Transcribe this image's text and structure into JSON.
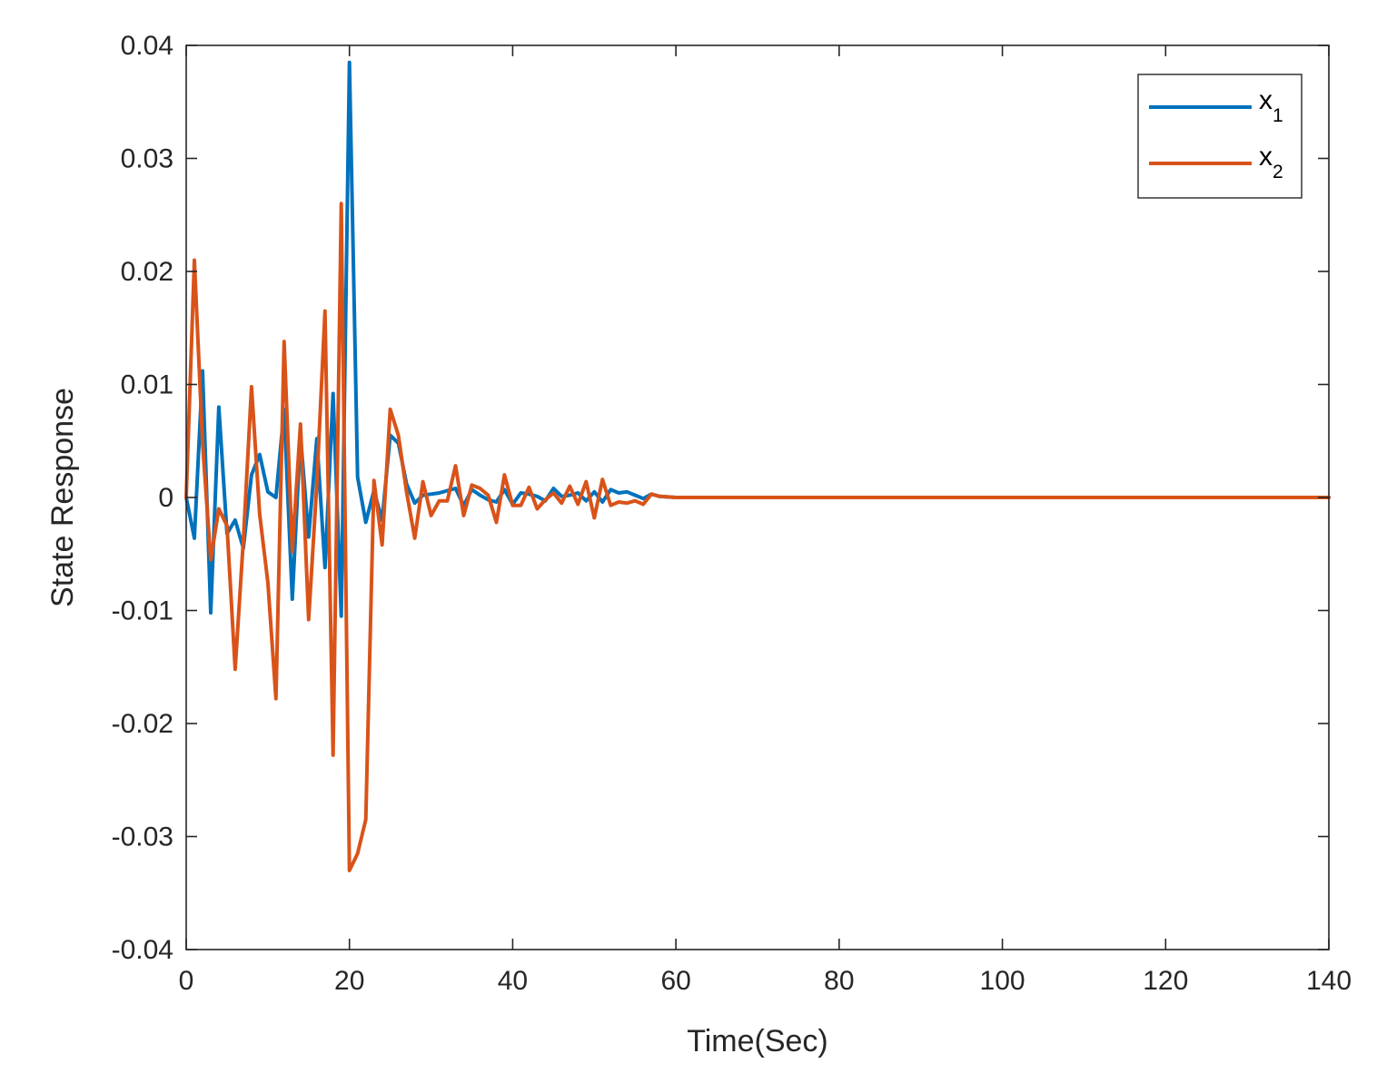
{
  "chart_data": {
    "type": "line",
    "title": "",
    "xlabel": "Time(Sec)",
    "ylabel": "State Response",
    "xlim": [
      0,
      140
    ],
    "ylim": [
      -0.04,
      0.04
    ],
    "xticks": [
      0,
      20,
      40,
      60,
      80,
      100,
      120,
      140
    ],
    "xtick_labels": [
      "0",
      "20",
      "40",
      "60",
      "80",
      "100",
      "120",
      "140"
    ],
    "yticks": [
      -0.04,
      -0.03,
      -0.02,
      -0.01,
      0,
      0.01,
      0.02,
      0.03,
      0.04
    ],
    "ytick_labels": [
      "-0.04",
      "-0.03",
      "-0.02",
      "-0.01",
      "0",
      "0.01",
      "0.02",
      "0.03",
      "0.04"
    ],
    "grid": false,
    "legend_position": "top-right",
    "series": [
      {
        "name": "x",
        "subscript": "1",
        "color": "#0072BD",
        "x": [
          0,
          1,
          2,
          3,
          4,
          5,
          6,
          7,
          8,
          9,
          10,
          11,
          12,
          13,
          14,
          15,
          16,
          17,
          18,
          19,
          20,
          21,
          22,
          23,
          24,
          25,
          26,
          27,
          28,
          29,
          30,
          31,
          32,
          33,
          34,
          35,
          36,
          37,
          38,
          39,
          40,
          41,
          42,
          43,
          44,
          45,
          46,
          47,
          48,
          49,
          50,
          51,
          52,
          53,
          54,
          55,
          56,
          57,
          58,
          60,
          65,
          70,
          75,
          80,
          85,
          90,
          100,
          110,
          120,
          130,
          140
        ],
        "y": [
          0,
          -0.0036,
          0.0112,
          -0.0102,
          0.008,
          -0.0032,
          -0.002,
          -0.0045,
          0.002,
          0.0038,
          0.0005,
          0,
          0.0078,
          -0.009,
          0.0055,
          -0.0035,
          0.0052,
          -0.0062,
          0.0092,
          -0.0105,
          0.0385,
          0.0018,
          -0.0022,
          0.0006,
          -0.002,
          0.0055,
          0.0048,
          0.0012,
          -0.0005,
          0.0002,
          0.0003,
          0.0004,
          0.0006,
          0.0008,
          -0.0007,
          0.0007,
          0.0002,
          -0.0002,
          -0.0004,
          0.0007,
          -0.0006,
          0.0004,
          0.0003,
          0.0001,
          -0.0003,
          0.0008,
          0.0001,
          0.0002,
          0.0004,
          -0.0003,
          0.0005,
          -0.0004,
          0.0007,
          0.0004,
          0.0005,
          0.0002,
          -0.0001,
          0.0003,
          0.0001,
          0,
          0,
          0,
          0,
          0,
          0,
          0,
          0,
          0,
          0,
          0,
          0
        ]
      },
      {
        "name": "x",
        "subscript": "2",
        "color": "#D95319",
        "x": [
          0,
          1,
          2,
          3,
          4,
          5,
          6,
          7,
          8,
          9,
          10,
          11,
          12,
          13,
          14,
          15,
          16,
          17,
          18,
          19,
          20,
          21,
          22,
          23,
          24,
          25,
          26,
          27,
          28,
          29,
          30,
          31,
          32,
          33,
          34,
          35,
          36,
          37,
          38,
          39,
          40,
          41,
          42,
          43,
          44,
          45,
          46,
          47,
          48,
          49,
          50,
          51,
          52,
          53,
          54,
          55,
          56,
          57,
          58,
          60,
          65,
          70,
          75,
          80,
          85,
          90,
          100,
          110,
          120,
          130,
          140
        ],
        "y": [
          0,
          0.021,
          0.0048,
          -0.0055,
          -0.001,
          -0.0025,
          -0.0152,
          -0.0038,
          0.0098,
          -0.0015,
          -0.0075,
          -0.0178,
          0.0138,
          -0.0048,
          0.0065,
          -0.0108,
          0.0012,
          0.0165,
          -0.0228,
          0.026,
          -0.033,
          -0.0315,
          -0.0285,
          0.0015,
          -0.0042,
          0.0078,
          0.0055,
          0.0005,
          -0.0036,
          0.0014,
          -0.0016,
          -0.0003,
          -0.0003,
          0.0028,
          -0.0016,
          0.0011,
          0.0008,
          0.0002,
          -0.0022,
          0.002,
          -0.0007,
          -0.0007,
          0.0009,
          -0.001,
          -0.0002,
          0.0004,
          -0.0005,
          0.001,
          -0.0006,
          0.0014,
          -0.0018,
          0.0016,
          -0.0007,
          -0.0004,
          -0.0005,
          -0.0003,
          -0.0006,
          0.0003,
          0.0001,
          0,
          0,
          0,
          0,
          0,
          0,
          0,
          0,
          0,
          0,
          0,
          0
        ]
      }
    ]
  }
}
